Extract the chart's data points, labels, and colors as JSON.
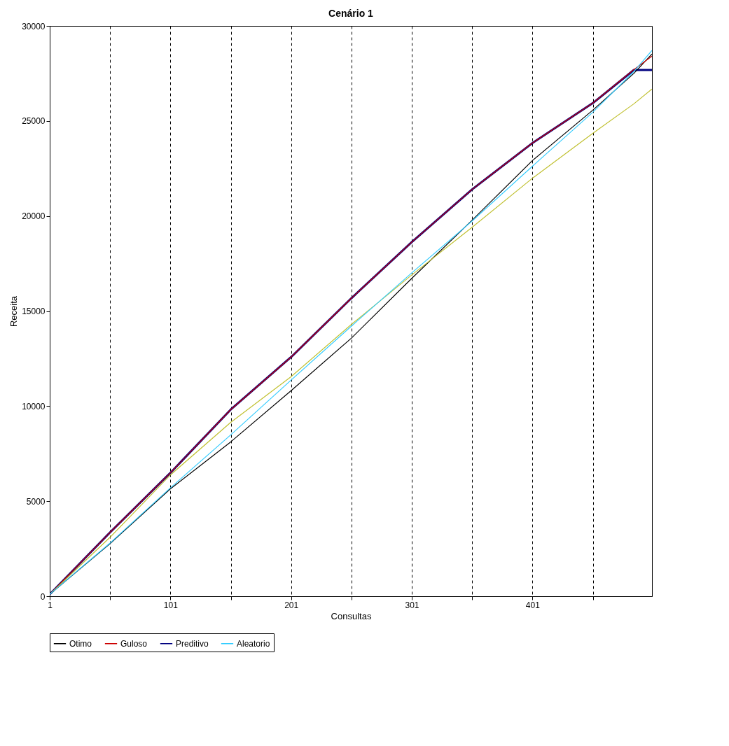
{
  "chart_data": {
    "type": "line",
    "title": "Cenário 1",
    "xlabel": "Consultas",
    "ylabel": "Receita",
    "x": [
      1,
      51,
      101,
      151,
      201,
      251,
      301,
      351,
      401,
      451,
      485,
      500
    ],
    "series": [
      {
        "name": "Otimo",
        "color": "#000000",
        "values": [
          100,
          2770,
          5650,
          8120,
          10810,
          13580,
          16720,
          19780,
          22920,
          25570,
          27500,
          28520
        ]
      },
      {
        "name": "Guloso",
        "color": "#cc0000",
        "values": [
          100,
          3360,
          6490,
          9820,
          12580,
          15680,
          18630,
          21400,
          23840,
          25940,
          27700,
          28410
        ]
      },
      {
        "color": "#c0c030",
        "values": [
          100,
          3100,
          6380,
          9150,
          11550,
          14300,
          16900,
          19410,
          21990,
          24350,
          25900,
          26680
        ]
      },
      {
        "name": "Preditivo",
        "color": "#000080",
        "values": [
          100,
          3360,
          6490,
          9820,
          12580,
          15680,
          18630,
          21400,
          23840,
          25940,
          27680,
          27680
        ]
      },
      {
        "name": "Aleatorio",
        "color": "#33ccff",
        "values": [
          100,
          2800,
          5700,
          8490,
          11370,
          14210,
          17010,
          19740,
          22620,
          25460,
          27600,
          28710
        ]
      }
    ],
    "xlim": [
      1,
      500
    ],
    "xticks": [
      1,
      {
        "value": 51,
        "label": null
      },
      101,
      {
        "value": 151,
        "label": null
      },
      201,
      {
        "value": 251,
        "label": null
      },
      301,
      {
        "value": 351,
        "label": null
      },
      401,
      {
        "value": 451,
        "label": null
      }
    ],
    "ylim": [
      0,
      30000
    ],
    "yticks": [
      0,
      5000,
      10000,
      15000,
      20000,
      25000,
      30000
    ],
    "grid": "x",
    "legend": "bottom",
    "line_style": "solid"
  }
}
